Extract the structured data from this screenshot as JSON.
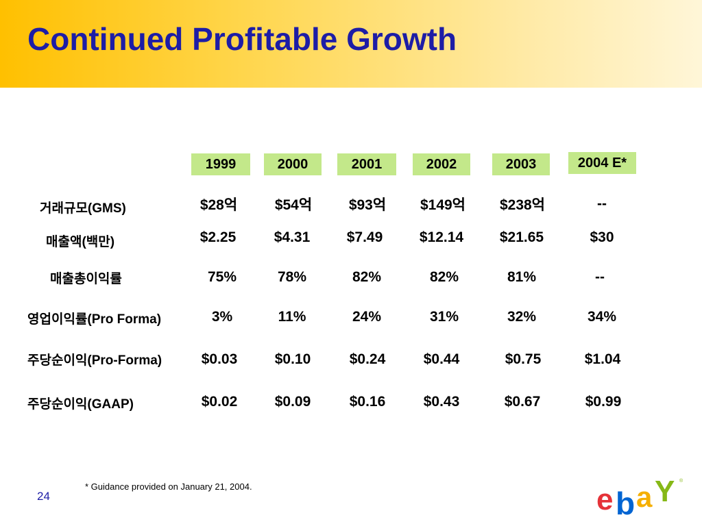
{
  "slide": {
    "title": "Continued Profitable Growth",
    "footnote": "* Guidance provided on January 21, 2004.",
    "page_number": "24",
    "logo_text": "ebay"
  },
  "table": {
    "columns": [
      "1999",
      "2000",
      "2001",
      "2002",
      "2003",
      "2004 E*"
    ],
    "rows": [
      {
        "label": "거래규모(GMS)",
        "values": [
          "$28억",
          "$54억",
          "$93억",
          "$149억",
          "$238억",
          "--"
        ]
      },
      {
        "label": "매출액(백만)",
        "values": [
          "$2.25",
          "$4.31",
          "$7.49",
          "$12.14",
          "$21.65",
          "$30"
        ]
      },
      {
        "label": "매출총이익률",
        "values": [
          "75%",
          "78%",
          "82%",
          "82%",
          "81%",
          "--"
        ]
      },
      {
        "label": "영업이익률(Pro Forma)",
        "values": [
          "3%",
          "11%",
          "24%",
          "31%",
          "32%",
          "34%"
        ]
      },
      {
        "label": "주당순이익(Pro-Forma)",
        "values": [
          "$0.03",
          "$0.10",
          "$0.24",
          "$0.44",
          "$0.75",
          "$1.04"
        ]
      },
      {
        "label": "주당순이익(GAAP)",
        "values": [
          "$0.02",
          "$0.09",
          "$0.16",
          "$0.43",
          "$0.67",
          "$0.99"
        ]
      }
    ]
  },
  "colors": {
    "title": "#1d1da6",
    "header_band": "#ffc000",
    "year_box": "#c3e88a",
    "logo_e": "#e53238",
    "logo_b": "#0064d2",
    "logo_a": "#f5af02",
    "logo_y": "#86b817"
  }
}
